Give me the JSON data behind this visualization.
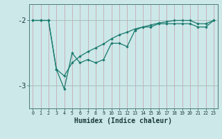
{
  "xlabel": "Humidex (Indice chaleur)",
  "bg_color": "#cce8e8",
  "line_color": "#1a7a6e",
  "grid_color_v": "#b8d8d8",
  "grid_color_h": "#a0c8c8",
  "axis_color": "#4a7a7a",
  "x_data": [
    0,
    1,
    2,
    3,
    4,
    5,
    6,
    7,
    8,
    9,
    10,
    11,
    12,
    13,
    14,
    15,
    16,
    17,
    18,
    19,
    20,
    21,
    22,
    23
  ],
  "y_jagged": [
    -2.0,
    -2.0,
    -2.0,
    -2.75,
    -3.05,
    -2.5,
    -2.65,
    -2.6,
    -2.65,
    -2.6,
    -2.35,
    -2.35,
    -2.4,
    -2.15,
    -2.1,
    -2.1,
    -2.05,
    -2.05,
    -2.05,
    -2.05,
    -2.05,
    -2.1,
    -2.1,
    -2.0
  ],
  "y_smooth": [
    -2.0,
    -2.0,
    -2.0,
    -2.75,
    -2.85,
    -2.65,
    -2.55,
    -2.48,
    -2.42,
    -2.36,
    -2.28,
    -2.22,
    -2.18,
    -2.13,
    -2.1,
    -2.07,
    -2.04,
    -2.02,
    -2.0,
    -2.0,
    -2.0,
    -2.05,
    -2.05,
    -2.0
  ],
  "ylim": [
    -3.35,
    -1.75
  ],
  "yticks": [
    -3.0,
    -2.0
  ],
  "xlim": [
    -0.5,
    23.5
  ]
}
